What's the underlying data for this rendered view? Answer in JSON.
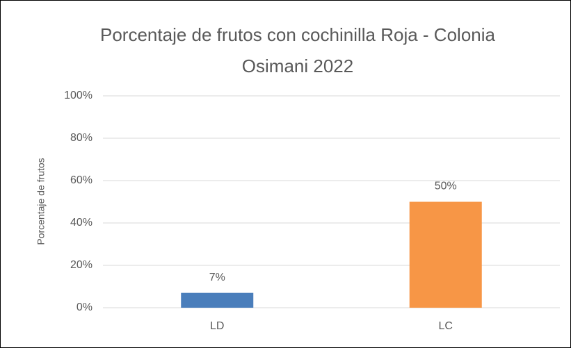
{
  "chart_data": {
    "type": "bar",
    "title": "Porcentaje de frutos con cochinilla Roja - Colonia Osimani 2022",
    "y_label": "Porcentaje de frutos",
    "categories": [
      "LD",
      "LC"
    ],
    "values": [
      7,
      50
    ],
    "value_labels": [
      "7%",
      "50%"
    ],
    "colors": [
      "#4a7ebb",
      "#f79646"
    ],
    "ylim": [
      0,
      100
    ],
    "yticks": [
      {
        "value": 0,
        "label": "0%"
      },
      {
        "value": 20,
        "label": "20%"
      },
      {
        "value": 40,
        "label": "40%"
      },
      {
        "value": 60,
        "label": "60%"
      },
      {
        "value": 80,
        "label": "80%"
      },
      {
        "value": 100,
        "label": "100%"
      }
    ],
    "grid": true
  }
}
